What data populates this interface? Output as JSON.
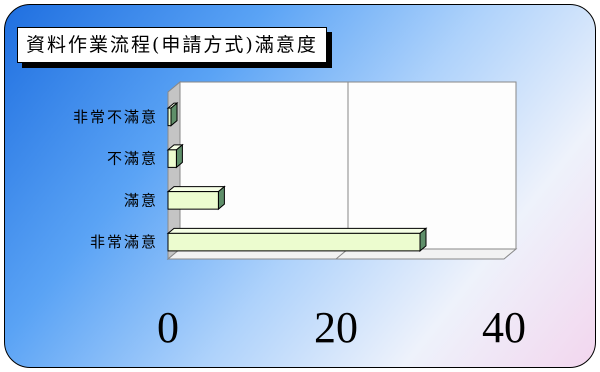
{
  "chart_data": {
    "type": "bar",
    "orientation": "horizontal",
    "three_d": true,
    "title": "資料作業流程(申請方式)滿意度",
    "categories": [
      "非常滿意",
      "滿意",
      "不滿意",
      "非常不滿意"
    ],
    "values": [
      30,
      6,
      1,
      0.3
    ],
    "xlim": [
      0,
      40
    ],
    "xticks": [
      0,
      20,
      40
    ],
    "grid": true,
    "legend": "none",
    "bar_color": "#ecfccf",
    "bar_side_color": "#5f8f6a",
    "background_gradient": [
      "#1f6fe0",
      "#aed2fb",
      "#f3d6ee"
    ]
  }
}
